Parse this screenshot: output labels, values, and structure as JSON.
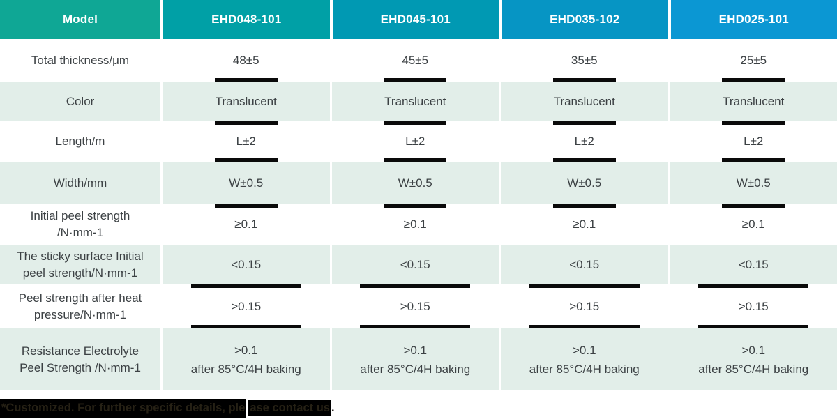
{
  "table": {
    "header": {
      "model_label": "Model",
      "columns": [
        "EHD048-101",
        "EHD045-101",
        "EHD035-102",
        "EHD025-101"
      ]
    },
    "rows": [
      {
        "label": "Total thickness/μm",
        "values": [
          "48±5",
          "45±5",
          "35±5",
          "25±5"
        ]
      },
      {
        "label": "Color",
        "values": [
          "Translucent",
          "Translucent",
          "Translucent",
          "Translucent"
        ]
      },
      {
        "label": "Length/m",
        "values": [
          "L±2",
          "L±2",
          "L±2",
          "L±2"
        ]
      },
      {
        "label": "Width/mm",
        "values": [
          "W±0.5",
          "W±0.5",
          "W±0.5",
          "W±0.5"
        ]
      },
      {
        "label": "Initial peel strength\n/N·mm-1",
        "values": [
          "≥0.1",
          "≥0.1",
          "≥0.1",
          "≥0.1"
        ]
      },
      {
        "label": "The sticky surface Initial\npeel strength/N·mm-1",
        "values": [
          "<0.15",
          "<0.15",
          "<0.15",
          "<0.15"
        ]
      },
      {
        "label": "Peel strength after heat\npressure/N·mm-1",
        "values": [
          ">0.15",
          ">0.15",
          ">0.15",
          ">0.15"
        ]
      },
      {
        "label": "Resistance Electrolyte\nPeel Strength /N·mm-1",
        "values": [
          ">0.1\nafter 85°C/4H baking",
          ">0.1\nafter 85°C/4H baking",
          ">0.1\nafter 85°C/4H baking",
          ">0.1\nafter 85°C/4H baking"
        ]
      }
    ]
  },
  "footer": {
    "highlight1": "*Customized. For further specific details, ple",
    "highlight2": "ase contact us",
    "tail": "."
  },
  "colors": {
    "header_model_bg": "#0fa795",
    "header_column_bgs": [
      "#00a0a6",
      "#0099b3",
      "#0695c4",
      "#0b97d3"
    ],
    "alt_row_bg": "#e2eee9",
    "bar_decoration": "#0a0a0a",
    "body_text": "#3c4144",
    "header_text": "#ffffff",
    "footer_highlight_bg": "#000000"
  }
}
